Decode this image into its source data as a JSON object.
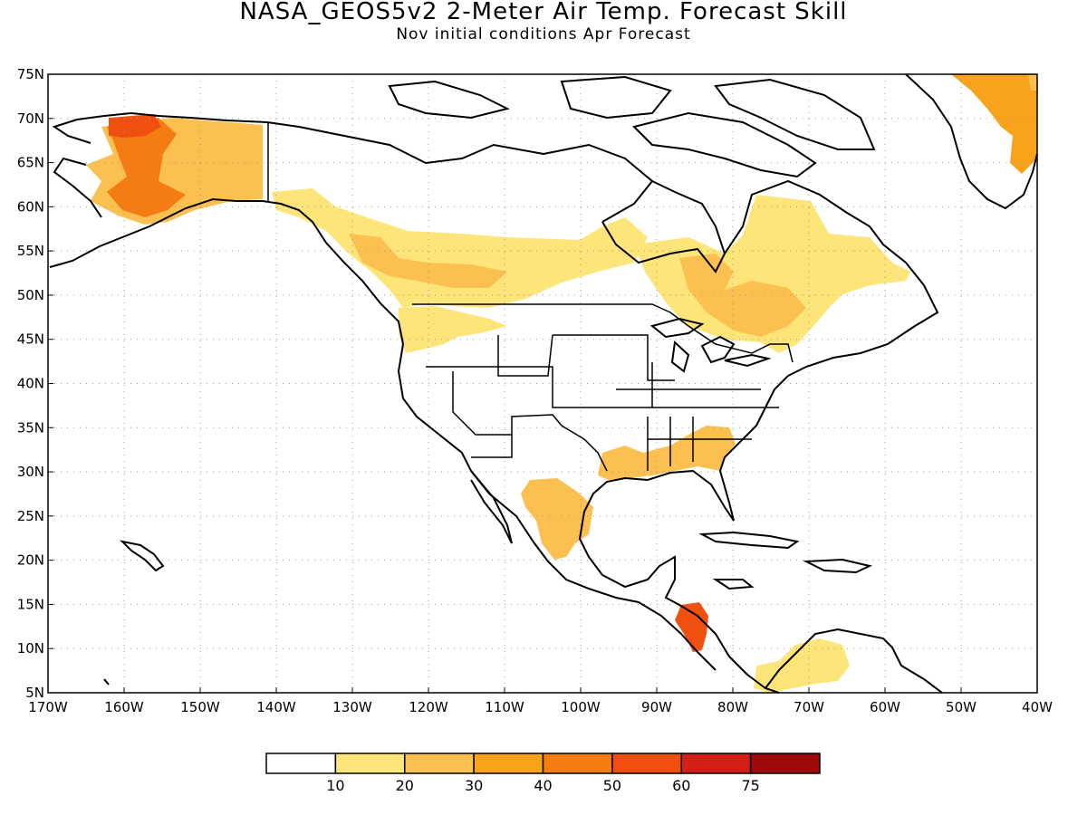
{
  "title": "NASA_GEOS5v2 2-Meter Air Temp. Forecast Skill",
  "subtitle": "Nov initial conditions  Apr Forecast",
  "map": {
    "lon_range": [
      -170,
      -40
    ],
    "lat_range": [
      5,
      75
    ],
    "grid": "dotted",
    "lat_ticks": [
      "5N",
      "10N",
      "15N",
      "20N",
      "25N",
      "30N",
      "35N",
      "40N",
      "45N",
      "50N",
      "55N",
      "60N",
      "65N",
      "70N",
      "75N"
    ],
    "lon_ticks": [
      "170W",
      "160W",
      "150W",
      "140W",
      "130W",
      "120W",
      "110W",
      "100W",
      "90W",
      "80W",
      "70W",
      "60W",
      "50W",
      "40W"
    ]
  },
  "colorbar": {
    "colors": [
      "#ffffff",
      "#fde57a",
      "#fbc04f",
      "#f9a21b",
      "#f47c12",
      "#ef4f0f",
      "#d22015",
      "#9c0a0a"
    ],
    "labels": [
      "10",
      "20",
      "30",
      "40",
      "50",
      "60",
      "75"
    ]
  },
  "regions": [
    {
      "name": "alaska",
      "color": "#fbc04f"
    },
    {
      "name": "alaska-core",
      "color": "#f47c12"
    },
    {
      "name": "alaska-north",
      "color": "#ef4f0f"
    },
    {
      "name": "canada-west",
      "color": "#fde57a"
    },
    {
      "name": "canada-west-core",
      "color": "#fbc04f"
    },
    {
      "name": "canada-east",
      "color": "#fde57a"
    },
    {
      "name": "canada-east-core",
      "color": "#fbc04f"
    },
    {
      "name": "greenland",
      "color": "#f9a21b"
    },
    {
      "name": "greenland-edge",
      "color": "#fbc04f"
    },
    {
      "name": "mexico",
      "color": "#fbc04f"
    },
    {
      "name": "gulf-coast",
      "color": "#fbc04f"
    },
    {
      "name": "central-america",
      "color": "#ef4f0f"
    },
    {
      "name": "south-america",
      "color": "#fde57a"
    }
  ]
}
